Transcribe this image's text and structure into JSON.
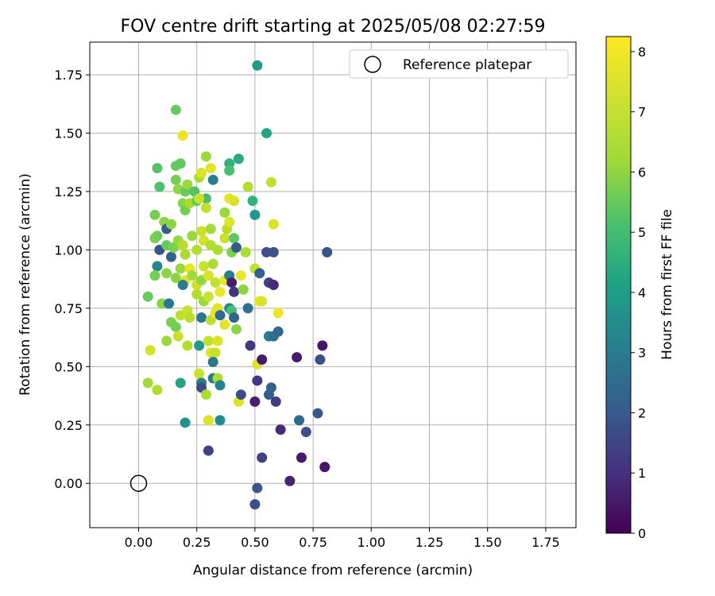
{
  "chart_data": {
    "type": "scatter",
    "title": "FOV centre drift starting at 2025/05/08 02:27:59",
    "xlabel": "Angular distance from reference (arcmin)",
    "ylabel": "Rotation from reference (arcmin)",
    "xlim": [
      -0.21,
      1.88
    ],
    "ylim": [
      -0.19,
      1.89
    ],
    "xticks": [
      "0.00",
      "0.25",
      "0.50",
      "0.75",
      "1.00",
      "1.25",
      "1.50",
      "1.75"
    ],
    "yticks": [
      "0.00",
      "0.25",
      "0.50",
      "0.75",
      "1.00",
      "1.25",
      "1.50",
      "1.75"
    ],
    "grid": true,
    "legend": {
      "position": "top-right",
      "label": "Reference platepar"
    },
    "reference_point": [
      0.0,
      0.0
    ],
    "colorbar": {
      "label": "Hours from first FF file",
      "range": [
        0,
        8.25
      ],
      "ticks": [
        "0",
        "1",
        "2",
        "3",
        "4",
        "5",
        "6",
        "7",
        "8"
      ],
      "colormap": "viridis"
    },
    "points": [
      [
        0.51,
        1.79,
        4.5
      ],
      [
        0.55,
        1.5,
        4.8
      ],
      [
        0.16,
        1.6,
        6.3
      ],
      [
        0.19,
        1.49,
        8.0
      ],
      [
        0.08,
        1.35,
        6.0
      ],
      [
        0.16,
        1.36,
        6.3
      ],
      [
        0.18,
        1.37,
        6.2
      ],
      [
        0.29,
        1.4,
        7.0
      ],
      [
        0.31,
        1.35,
        7.9
      ],
      [
        0.39,
        1.37,
        5.3
      ],
      [
        0.39,
        1.34,
        5.8
      ],
      [
        0.43,
        1.39,
        5.0
      ],
      [
        0.09,
        1.27,
        5.9
      ],
      [
        0.16,
        1.3,
        6.5
      ],
      [
        0.17,
        1.26,
        6.9
      ],
      [
        0.2,
        1.25,
        6.3
      ],
      [
        0.21,
        1.28,
        7.0
      ],
      [
        0.24,
        1.25,
        6.0
      ],
      [
        0.26,
        1.31,
        7.2
      ],
      [
        0.27,
        1.33,
        7.8
      ],
      [
        0.29,
        1.22,
        5.8
      ],
      [
        0.32,
        1.3,
        3.6
      ],
      [
        0.47,
        1.27,
        7.3
      ],
      [
        0.49,
        1.21,
        5.3
      ],
      [
        0.57,
        1.29,
        7.5
      ],
      [
        0.07,
        1.15,
        6.5
      ],
      [
        0.11,
        1.12,
        6.8
      ],
      [
        0.12,
        1.09,
        2.4
      ],
      [
        0.14,
        1.11,
        6.8
      ],
      [
        0.19,
        1.2,
        6.8
      ],
      [
        0.2,
        1.17,
        6.5
      ],
      [
        0.22,
        1.2,
        7.2
      ],
      [
        0.25,
        1.21,
        6.2
      ],
      [
        0.26,
        1.22,
        7.6
      ],
      [
        0.29,
        1.18,
        7.5
      ],
      [
        0.37,
        1.16,
        7.0
      ],
      [
        0.39,
        1.22,
        8.0
      ],
      [
        0.41,
        1.21,
        7.8
      ],
      [
        0.5,
        1.15,
        4.5
      ],
      [
        0.58,
        1.11,
        7.8
      ],
      [
        0.07,
        1.05,
        6.6
      ],
      [
        0.08,
        1.06,
        6.4
      ],
      [
        0.09,
        1.0,
        2.1
      ],
      [
        0.12,
        1.02,
        6.3
      ],
      [
        0.14,
        0.97,
        2.6
      ],
      [
        0.15,
        1.01,
        6.6
      ],
      [
        0.17,
        1.04,
        6.9
      ],
      [
        0.19,
        1.02,
        7.4
      ],
      [
        0.2,
        0.98,
        7.2
      ],
      [
        0.23,
        1.06,
        7.0
      ],
      [
        0.25,
        1.0,
        7.3
      ],
      [
        0.27,
        1.08,
        7.6
      ],
      [
        0.28,
        1.04,
        7.7
      ],
      [
        0.31,
        1.09,
        7.1
      ],
      [
        0.31,
        1.02,
        7.3
      ],
      [
        0.34,
        1.0,
        7.2
      ],
      [
        0.37,
        1.05,
        7.6
      ],
      [
        0.38,
        1.09,
        7.4
      ],
      [
        0.39,
        1.12,
        7.8
      ],
      [
        0.4,
        0.99,
        6.6
      ],
      [
        0.41,
        1.05,
        6.2
      ],
      [
        0.42,
        1.01,
        2.4
      ],
      [
        0.46,
        0.99,
        7.2
      ],
      [
        0.55,
        0.99,
        2.0
      ],
      [
        0.58,
        0.99,
        2.1
      ],
      [
        0.81,
        0.99,
        2.2
      ],
      [
        0.08,
        0.93,
        3.8
      ],
      [
        0.12,
        0.9,
        6.8
      ],
      [
        0.16,
        0.88,
        6.8
      ],
      [
        0.18,
        0.92,
        7.0
      ],
      [
        0.2,
        0.87,
        7.9
      ],
      [
        0.22,
        0.92,
        8.0
      ],
      [
        0.23,
        0.89,
        7.1
      ],
      [
        0.25,
        0.85,
        7.7
      ],
      [
        0.27,
        0.87,
        6.9
      ],
      [
        0.28,
        0.93,
        7.6
      ],
      [
        0.3,
        0.89,
        7.8
      ],
      [
        0.32,
        0.94,
        7.2
      ],
      [
        0.33,
        0.86,
        7.5
      ],
      [
        0.35,
        0.82,
        8.0
      ],
      [
        0.37,
        0.87,
        8.0
      ],
      [
        0.39,
        0.89,
        3.5
      ],
      [
        0.4,
        0.86,
        0.7
      ],
      [
        0.41,
        0.82,
        1.2
      ],
      [
        0.44,
        0.89,
        8.0
      ],
      [
        0.45,
        0.83,
        6.8
      ],
      [
        0.5,
        0.92,
        7.5
      ],
      [
        0.52,
        0.9,
        2.5
      ],
      [
        0.56,
        0.86,
        1.6
      ],
      [
        0.58,
        0.85,
        1.0
      ],
      [
        0.07,
        0.89,
        6.5
      ],
      [
        0.04,
        0.8,
        6.3
      ],
      [
        0.1,
        0.77,
        6.8
      ],
      [
        0.13,
        0.77,
        3.3
      ],
      [
        0.18,
        0.72,
        7.5
      ],
      [
        0.19,
        0.85,
        3.5
      ],
      [
        0.21,
        0.74,
        7.6
      ],
      [
        0.22,
        0.71,
        7.4
      ],
      [
        0.25,
        0.81,
        7.3
      ],
      [
        0.27,
        0.71,
        3.2
      ],
      [
        0.28,
        0.78,
        7.0
      ],
      [
        0.3,
        0.8,
        7.6
      ],
      [
        0.31,
        0.7,
        7.4
      ],
      [
        0.33,
        0.73,
        8.0
      ],
      [
        0.34,
        0.75,
        7.9
      ],
      [
        0.35,
        0.72,
        2.9
      ],
      [
        0.37,
        0.68,
        7.9
      ],
      [
        0.39,
        0.75,
        3.8
      ],
      [
        0.4,
        0.74,
        5.8
      ],
      [
        0.41,
        0.71,
        2.7
      ],
      [
        0.42,
        0.66,
        6.8
      ],
      [
        0.47,
        0.75,
        3.1
      ],
      [
        0.52,
        0.78,
        8.0
      ],
      [
        0.53,
        0.78,
        7.8
      ],
      [
        0.6,
        0.73,
        8.0
      ],
      [
        0.05,
        0.57,
        7.7
      ],
      [
        0.12,
        0.61,
        7.0
      ],
      [
        0.14,
        0.69,
        6.5
      ],
      [
        0.16,
        0.67,
        6.5
      ],
      [
        0.17,
        0.63,
        7.6
      ],
      [
        0.21,
        0.59,
        7.3
      ],
      [
        0.26,
        0.59,
        4.5
      ],
      [
        0.3,
        0.61,
        7.5
      ],
      [
        0.31,
        0.56,
        7.9
      ],
      [
        0.33,
        0.56,
        7.6
      ],
      [
        0.34,
        0.61,
        7.8
      ],
      [
        0.48,
        0.59,
        1.4
      ],
      [
        0.51,
        0.51,
        7.9
      ],
      [
        0.53,
        0.53,
        0.6
      ],
      [
        0.56,
        0.63,
        3.5
      ],
      [
        0.58,
        0.63,
        3.0
      ],
      [
        0.6,
        0.65,
        2.8
      ],
      [
        0.68,
        0.54,
        0.6
      ],
      [
        0.78,
        0.53,
        2.0
      ],
      [
        0.79,
        0.59,
        0.5
      ],
      [
        0.04,
        0.43,
        7.1
      ],
      [
        0.08,
        0.4,
        7.3
      ],
      [
        0.18,
        0.43,
        4.8
      ],
      [
        0.26,
        0.47,
        7.6
      ],
      [
        0.27,
        0.43,
        3.6
      ],
      [
        0.27,
        0.41,
        1.9
      ],
      [
        0.29,
        0.38,
        7.2
      ],
      [
        0.32,
        0.45,
        3.3
      ],
      [
        0.32,
        0.52,
        3.3
      ],
      [
        0.34,
        0.45,
        7.2
      ],
      [
        0.35,
        0.42,
        3.6
      ],
      [
        0.43,
        0.35,
        7.8
      ],
      [
        0.44,
        0.38,
        2.0
      ],
      [
        0.5,
        0.35,
        0.7
      ],
      [
        0.51,
        0.44,
        1.4
      ],
      [
        0.56,
        0.38,
        2.3
      ],
      [
        0.57,
        0.41,
        2.6
      ],
      [
        0.59,
        0.35,
        1.5
      ],
      [
        0.2,
        0.26,
        4.3
      ],
      [
        0.3,
        0.27,
        7.8
      ],
      [
        0.35,
        0.27,
        4.0
      ],
      [
        0.61,
        0.23,
        1.0
      ],
      [
        0.69,
        0.27,
        2.8
      ],
      [
        0.72,
        0.22,
        2.0
      ],
      [
        0.77,
        0.3,
        2.3
      ],
      [
        0.3,
        0.14,
        1.6
      ],
      [
        0.53,
        0.11,
        1.6
      ],
      [
        0.7,
        0.11,
        0.6
      ],
      [
        0.8,
        0.07,
        0.5
      ],
      [
        0.65,
        0.01,
        0.8
      ],
      [
        0.51,
        -0.02,
        2.2
      ],
      [
        0.5,
        -0.09,
        2.0
      ]
    ]
  }
}
